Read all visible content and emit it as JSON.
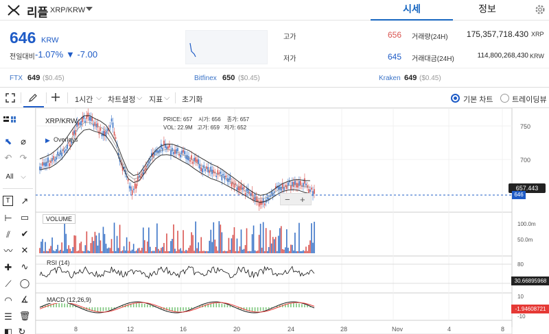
{
  "header": {
    "coin_name": "리플",
    "coin_pair": "XRP/KRW",
    "tabs": [
      {
        "label": "시세",
        "active": true
      },
      {
        "label": "정보",
        "active": false
      }
    ],
    "settings_icon": "gear-icon"
  },
  "price": {
    "current": "646",
    "unit": "KRW",
    "change_label": "전일대비",
    "change_pct": "-1.07%",
    "change_amt": "▼ -7.00",
    "high_label": "고가",
    "high": "656",
    "low_label": "저가",
    "low": "645",
    "volume_label": "거래량(24H)",
    "volume": "175,357,718.430",
    "volume_unit": "XRP",
    "value_label": "거래대금(24H)",
    "value": "114,800,268,430",
    "value_unit": "KRW"
  },
  "exchanges": [
    {
      "name": "FTX",
      "price": "649",
      "delta": "($0.45)"
    },
    {
      "name": "Bitfinex",
      "price": "650",
      "delta": "($0.45)"
    },
    {
      "name": "Kraken",
      "price": "649",
      "delta": "($0.45)"
    }
  ],
  "toolbar": {
    "interval": "1시간",
    "chart_settings": "차트설정",
    "indicators": "지표",
    "reset": "초기화",
    "mode_basic": "기본 차트",
    "mode_trading": "트레이딩뷰"
  },
  "chart": {
    "symbol": "XRP/KRW",
    "overlays": "Overlays",
    "info": {
      "price_label": "PRICE:",
      "price": "657",
      "open_label": "시가:",
      "open": "656",
      "close_label": "종가:",
      "close": "657",
      "vol_label": "VOL:",
      "vol": "22.9M",
      "high_label": "고가:",
      "high": "659",
      "low_label": "저가:",
      "low": "652"
    },
    "price_axis": [
      "750",
      "700"
    ],
    "price_tag_current": "646",
    "price_tag_cross": "657.443",
    "zoom_out": "−",
    "zoom_in": "+",
    "volume_title": "VOLUME",
    "volume_axis": [
      "100.0m",
      "50.0m"
    ],
    "rsi_title": "RSI (14)",
    "rsi_axis": [
      "80"
    ],
    "rsi_value": "30.66895968",
    "macd_title": "MACD (12,26,9)",
    "macd_axis": [
      "10",
      "-10"
    ],
    "macd_value": "-1.94608721",
    "time_axis": [
      "8",
      "12",
      "16",
      "20",
      "24",
      "28",
      "Nov",
      "4",
      "8"
    ],
    "interval_menu": "1시간"
  },
  "colors": {
    "accent": "#1e5bc6",
    "up": "#d9534f",
    "down": "#1e5bc6",
    "macd_value_bg": "#e53935"
  }
}
